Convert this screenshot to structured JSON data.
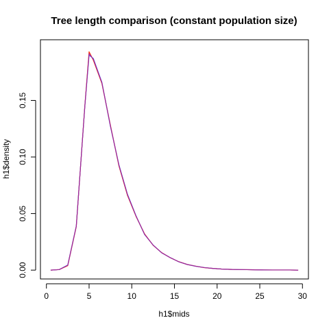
{
  "chart_data": {
    "type": "line",
    "title": "Tree length comparison (constant population size)",
    "xlabel": "h1$mids",
    "ylabel": "h1$density",
    "xlim": [
      -0.7,
      30.7
    ],
    "ylim": [
      -0.0078,
      0.2036
    ],
    "x_ticks": [
      0,
      5,
      10,
      15,
      20,
      25,
      30
    ],
    "y_ticks": [
      0.0,
      0.05,
      0.1,
      0.15
    ],
    "y_tick_labels": [
      "0.00",
      "0.05",
      "0.10",
      "0.15"
    ],
    "grid": false,
    "legend": "none",
    "x": [
      0.5,
      1.5,
      2.5,
      3.5,
      4.5,
      5.0,
      5.5,
      6.5,
      7.5,
      8.5,
      9.5,
      10.5,
      11.5,
      12.5,
      13.5,
      14.5,
      15.5,
      16.5,
      17.5,
      18.5,
      19.5,
      20.5,
      21.5,
      22.5,
      23.5,
      24.5,
      25.5,
      26.5,
      27.5,
      28.5,
      29.5
    ],
    "series": [
      {
        "color": "#ff3300",
        "values": [
          0.0,
          0.0005,
          0.004,
          0.0385,
          0.145,
          0.193,
          0.1855,
          0.165,
          0.128,
          0.092,
          0.066,
          0.0475,
          0.032,
          0.022,
          0.0155,
          0.011,
          0.0075,
          0.005,
          0.0035,
          0.0022,
          0.0015,
          0.001,
          0.0007,
          0.0005,
          0.0004,
          0.0003,
          0.0002,
          0.0001,
          0.0001,
          0.0001,
          0.0
        ]
      },
      {
        "color": "#4455ff",
        "values": [
          0.0,
          0.0005,
          0.0045,
          0.039,
          0.1445,
          0.19,
          0.187,
          0.166,
          0.127,
          0.093,
          0.067,
          0.048,
          0.0315,
          0.0222,
          0.0153,
          0.0111,
          0.0074,
          0.005,
          0.0034,
          0.0023,
          0.0015,
          0.001,
          0.0007,
          0.0005,
          0.0004,
          0.0003,
          0.0002,
          0.0001,
          0.0001,
          0.0001,
          0.0
        ]
      }
    ],
    "overlay_color": "#aa2288"
  }
}
